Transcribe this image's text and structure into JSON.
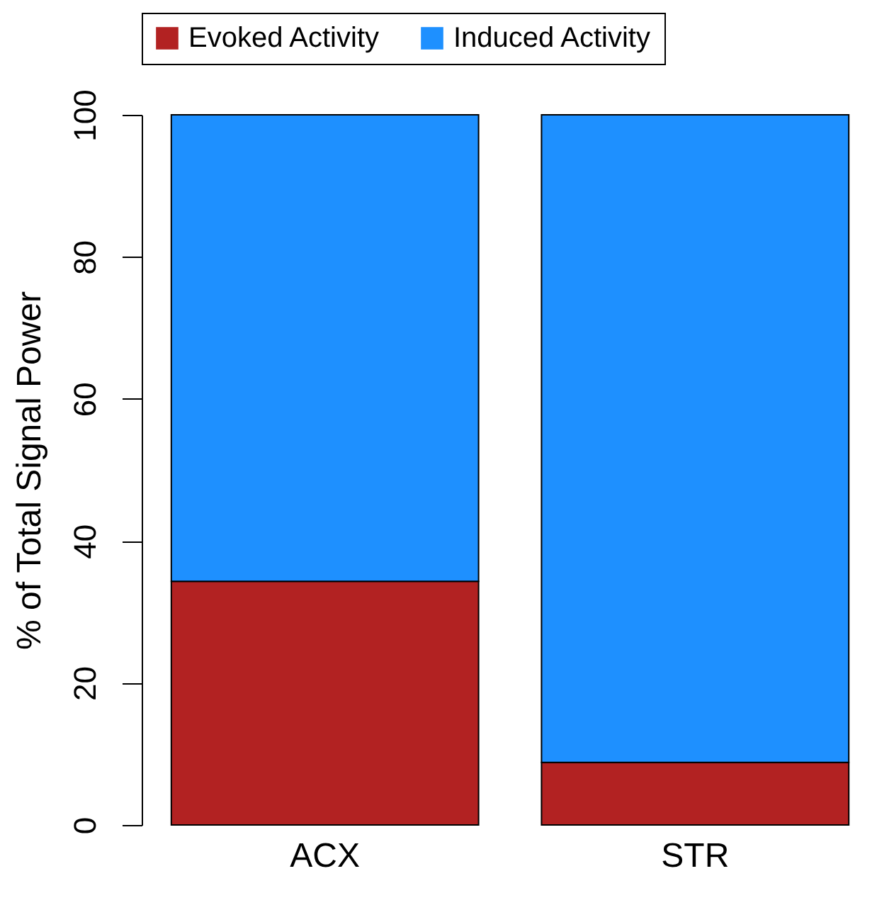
{
  "chart_data": {
    "type": "bar",
    "stacked": true,
    "ylabel": "% of Total Signal Power",
    "categories": [
      "ACX",
      "STR"
    ],
    "series": [
      {
        "name": "Evoked Activity",
        "color": "#b22222",
        "values": [
          34.3,
          8.8
        ]
      },
      {
        "name": "Induced Activity",
        "color": "#1e90ff",
        "values": [
          65.7,
          91.2
        ]
      }
    ],
    "ylim": [
      0,
      100
    ],
    "yticks": [
      0,
      20,
      40,
      60,
      80,
      100
    ],
    "grid": false,
    "legend": "top left"
  }
}
